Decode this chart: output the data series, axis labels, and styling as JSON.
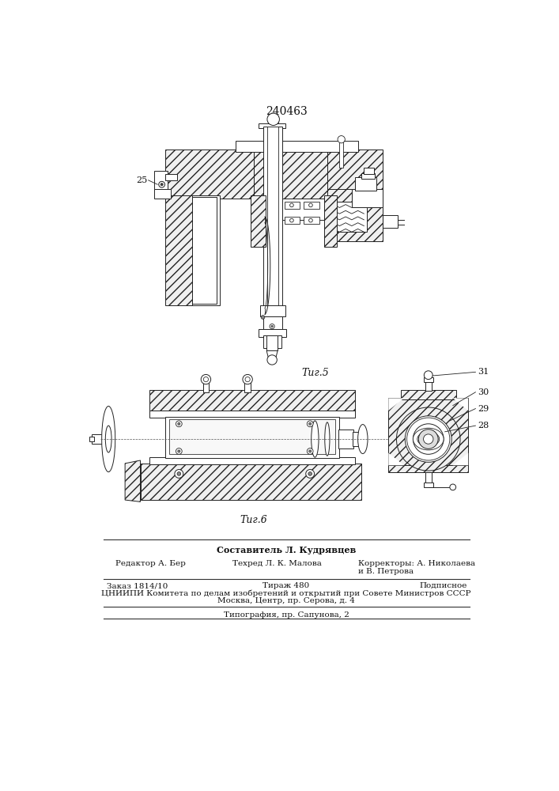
{
  "title": "240463",
  "fig5_label": "Τиг.5",
  "fig6_label": "Τиг.6",
  "label_25": "25",
  "label_28": "28",
  "label_29": "29",
  "label_30": "30",
  "label_31": "31",
  "footer_line1": "Составитель Л. Кудрявцев",
  "footer_line2_left": "Редактор А. Бер",
  "footer_line2_mid": "Техред Л. К. Малова",
  "footer_line2_right": "Корректоры: А. Николаева",
  "footer_line3_right": "и В. Петрова",
  "footer_line4_left": "Заказ 1814/10",
  "footer_line4_mid": "Тираж 480",
  "footer_line4_right": "Подписное",
  "footer_line5": "ЦНИИПИ Комитета по делам изобретений и открытий при Совете Министров СССР",
  "footer_line6": "Москва, Центр, пр. Серова, д. 4",
  "footer_line7": "Типография, пр. Сапунова, 2"
}
